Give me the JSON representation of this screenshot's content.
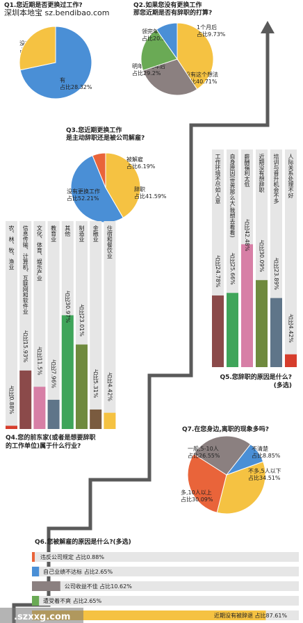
{
  "watermark_top": "深圳本地宝   sz.bendibao.com",
  "watermark_bottom": ".szxxg.com",
  "colors": {
    "blue": "#4a8fd6",
    "yellow": "#f5c242",
    "green": "#6aaa55",
    "grey": "#8b8080",
    "orange": "#e9643a",
    "red": "#d63d2c",
    "pink": "#d77fa6",
    "slate": "#5f7589",
    "olive": "#6f8a3e",
    "brown": "#7a5b3f",
    "bar_bg": "#e6e6e6",
    "arrow": "#5a5a5a"
  },
  "chart_data": [
    {
      "id": "q1",
      "type": "pie",
      "title_lines": [
        "Q1.您近期是否更换过工作?"
      ],
      "slices": [
        {
          "label": "没有",
          "value_text": "占比71.68%",
          "value": 71.68,
          "color": "#4a8fd6"
        },
        {
          "label": "有",
          "value_text": "占比28.32%",
          "value": 28.32,
          "color": "#f5c242"
        }
      ]
    },
    {
      "id": "q2",
      "type": "pie",
      "title_lines": [
        "Q2.如果您没有更换工作",
        "那您近期是否有辞职的打算?"
      ],
      "slices": [
        {
          "label": "没有这个想法",
          "value_text": "占比40.71%",
          "value": 40.71,
          "color": "#f5c242"
        },
        {
          "label": "明年过完年后",
          "value_text": "占比29.2%",
          "value": 29.2,
          "color": "#8b8080"
        },
        {
          "label": "领完年终奖",
          "value_text": "占比20.35%",
          "value": 20.35,
          "color": "#6aaa55"
        },
        {
          "label": "1个月后",
          "value_text": "占比9.73%",
          "value": 9.73,
          "color": "#4a8fd6"
        }
      ]
    },
    {
      "id": "q3",
      "type": "pie",
      "title_lines": [
        "Q3.您近期更换工作",
        "是主动辞职还是被公司解雇?"
      ],
      "slices": [
        {
          "label": "辞职",
          "value_text": "占比41.59%",
          "value": 41.59,
          "color": "#f5c242"
        },
        {
          "label": "没有更换工作",
          "value_text": "占比52.21%",
          "value": 52.21,
          "color": "#4a8fd6"
        },
        {
          "label": "被解雇",
          "value_text": "占比6.19%",
          "value": 6.19,
          "color": "#e9643a"
        }
      ]
    },
    {
      "id": "q4",
      "type": "bar",
      "title_lines": [
        "Q4.您的前东家(或者是想要辞职",
        "的工作单位)属于什么行业?"
      ],
      "bars": [
        {
          "label": "农、林、牧、渔业",
          "value_text": "占比0.88%",
          "value": 0.88,
          "color": "#d63d2c"
        },
        {
          "label": "信息传输、计算机、互联网和软件业",
          "value_text": "占比15.93%",
          "value": 15.93,
          "color": "#8b4a4a"
        },
        {
          "label": "文化、体育、娱乐产业",
          "value_text": "占比11.5%",
          "value": 11.5,
          "color": "#d77fa6"
        },
        {
          "label": "教育业",
          "value_text": "占比7.96%",
          "value": 7.96,
          "color": "#5f7589"
        },
        {
          "label": "其他",
          "value_text": "占比30.97%",
          "value": 30.97,
          "color": "#3fa55a"
        },
        {
          "label": "制造业",
          "value_text": "占比23.01%",
          "value": 23.01,
          "color": "#6f8a3e"
        },
        {
          "label": "金融业",
          "value_text": "占比5.31%",
          "value": 5.31,
          "color": "#7a5b3f"
        },
        {
          "label": "住宿和餐饮业",
          "value_text": "占比4.42%",
          "value": 4.42,
          "color": "#f5c242"
        }
      ]
    },
    {
      "id": "q5",
      "type": "bar",
      "title_lines": [
        "Q5.您辞职的原因是什么?",
        "(多选)"
      ],
      "bars": [
        {
          "label": "工作环境不尽如人意",
          "value_text": "占比24.78%",
          "value": 24.78,
          "color": "#8b4a4a"
        },
        {
          "label": "自身原因(世界那么大,我想去看看)",
          "value_text": "占比25.66%",
          "value": 25.66,
          "color": "#3fa55a"
        },
        {
          "label": "薪酬福利太低",
          "value_text": "占比42.48%",
          "value": 42.48,
          "color": "#d77fa6"
        },
        {
          "label": "近期没有想辞职",
          "value_text": "占比30.09%",
          "value": 30.09,
          "color": "#6f8a3e"
        },
        {
          "label": "培训与晋升机会不多",
          "value_text": "占比23.89%",
          "value": 23.89,
          "color": "#5f7589"
        },
        {
          "label": "人际关系处理不好",
          "value_text": "占比4.42%",
          "value": 4.42,
          "color": "#d63d2c"
        }
      ]
    },
    {
      "id": "q6",
      "type": "bar",
      "orientation": "horizontal",
      "title_lines": [
        "Q6.您被解雇的原因是什么?(多选)"
      ],
      "bars": [
        {
          "label": "违反公司规定",
          "value_text": "占比0.88%",
          "value": 0.88,
          "color": "#e9643a"
        },
        {
          "label": "自己业绩不达标",
          "value_text": "占比2.65%",
          "value": 2.65,
          "color": "#4a8fd6"
        },
        {
          "label": "公司收益不佳",
          "value_text": "占比10.62%",
          "value": 10.62,
          "color": "#8b8080"
        },
        {
          "label": "遭受着不爽",
          "value_text": "占比2.65%",
          "value": 2.65,
          "color": "#6aaa55"
        },
        {
          "label": "近期没有被辞退",
          "value_text": "占比87.61%",
          "value": 87.61,
          "color": "#f5c242"
        }
      ]
    },
    {
      "id": "q7",
      "type": "pie",
      "title_lines": [
        "Q7.在您身边,离职的现象多吗?"
      ],
      "slices": [
        {
          "label": "不多,5人以下",
          "value_text": "占比34.51%",
          "value": 34.51,
          "color": "#f5c242"
        },
        {
          "label": "多,10人以上",
          "value_text": "占比30.09%",
          "value": 30.09,
          "color": "#e9643a"
        },
        {
          "label": "一般,5-10人",
          "value_text": "占比26.55%",
          "value": 26.55,
          "color": "#8b8080"
        },
        {
          "label": "不清楚",
          "value_text": "占比8.85%",
          "value": 8.85,
          "color": "#4a8fd6"
        }
      ]
    }
  ]
}
